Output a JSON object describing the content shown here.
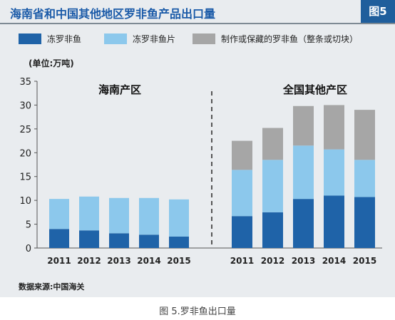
{
  "title": "海南省和中国其他地区罗非鱼产品出口量",
  "figure_tag": "图5",
  "unit_label": "(单位:万吨)",
  "source": "数据来源:中国海关",
  "caption": "图 5.罗非鱼出口量",
  "colors": {
    "frozen_whole": "#1f63a8",
    "frozen_fillet": "#8cc8ec",
    "processed": "#a6a6a6",
    "title": "#1a5aa8",
    "background": "#e9ecef"
  },
  "chart_data": {
    "type": "bar",
    "stacked": true,
    "ylim": [
      0,
      35
    ],
    "yticks": [
      0,
      5,
      10,
      15,
      20,
      25,
      30,
      35
    ],
    "legend_position": "top",
    "grid": false,
    "groups": [
      {
        "label": "海南产区",
        "categories": [
          "2011",
          "2012",
          "2013",
          "2014",
          "2015"
        ],
        "series": [
          {
            "name": "冻罗非鱼",
            "values": [
              4.0,
              3.7,
              3.1,
              2.8,
              2.4
            ]
          },
          {
            "name": "冻罗非鱼片",
            "values": [
              6.3,
              7.1,
              7.4,
              7.7,
              7.8
            ]
          },
          {
            "name": "制作或保藏的罗非鱼（整条或切块）",
            "values": [
              0,
              0,
              0,
              0,
              0
            ]
          }
        ]
      },
      {
        "label": "全国其他产区",
        "categories": [
          "2011",
          "2012",
          "2013",
          "2014",
          "2015"
        ],
        "series": [
          {
            "name": "冻罗非鱼",
            "values": [
              6.7,
              7.5,
              10.3,
              11.0,
              10.7
            ]
          },
          {
            "name": "冻罗非鱼片",
            "values": [
              9.7,
              11.0,
              11.2,
              9.7,
              7.8
            ]
          },
          {
            "name": "制作或保藏的罗非鱼（整条或切块）",
            "values": [
              6.1,
              6.7,
              8.3,
              9.3,
              10.5
            ]
          }
        ]
      }
    ]
  }
}
